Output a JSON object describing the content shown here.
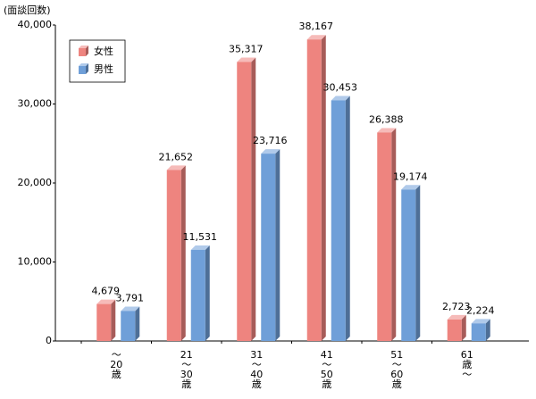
{
  "chart_data": {
    "type": "bar3d",
    "y_label": "(面談回数)",
    "categories": [
      [
        "～",
        "20",
        "歳"
      ],
      [
        "21",
        "～",
        "30",
        "歳"
      ],
      [
        "31",
        "～",
        "40",
        "歳"
      ],
      [
        "41",
        "～",
        "50",
        "歳"
      ],
      [
        "51",
        "～",
        "60",
        "歳"
      ],
      [
        "61",
        "歳",
        "～"
      ]
    ],
    "series": [
      {
        "name": "女性",
        "color": "#ee847f",
        "values": [
          4679,
          21652,
          35317,
          38167,
          26388,
          2723
        ],
        "value_labels": [
          "4,679",
          "21,652",
          "35,317",
          "38,167",
          "26,388",
          "2,723"
        ]
      },
      {
        "name": "男性",
        "color": "#6f9fd8",
        "values": [
          3791,
          11531,
          23716,
          30453,
          19174,
          2224
        ],
        "value_labels": [
          "3,791",
          "11,531",
          "23,716",
          "30,453",
          "19,174",
          "2,224"
        ]
      }
    ],
    "ylim": [
      0,
      40000
    ],
    "yticks": [
      0,
      {
        "value": 10000,
        "label": "10,000"
      },
      {
        "value": 20000,
        "label": "20,000"
      },
      {
        "value": 30000,
        "label": "30,000"
      },
      {
        "value": 40000,
        "label": "40,000"
      }
    ],
    "legend": "top-left"
  }
}
